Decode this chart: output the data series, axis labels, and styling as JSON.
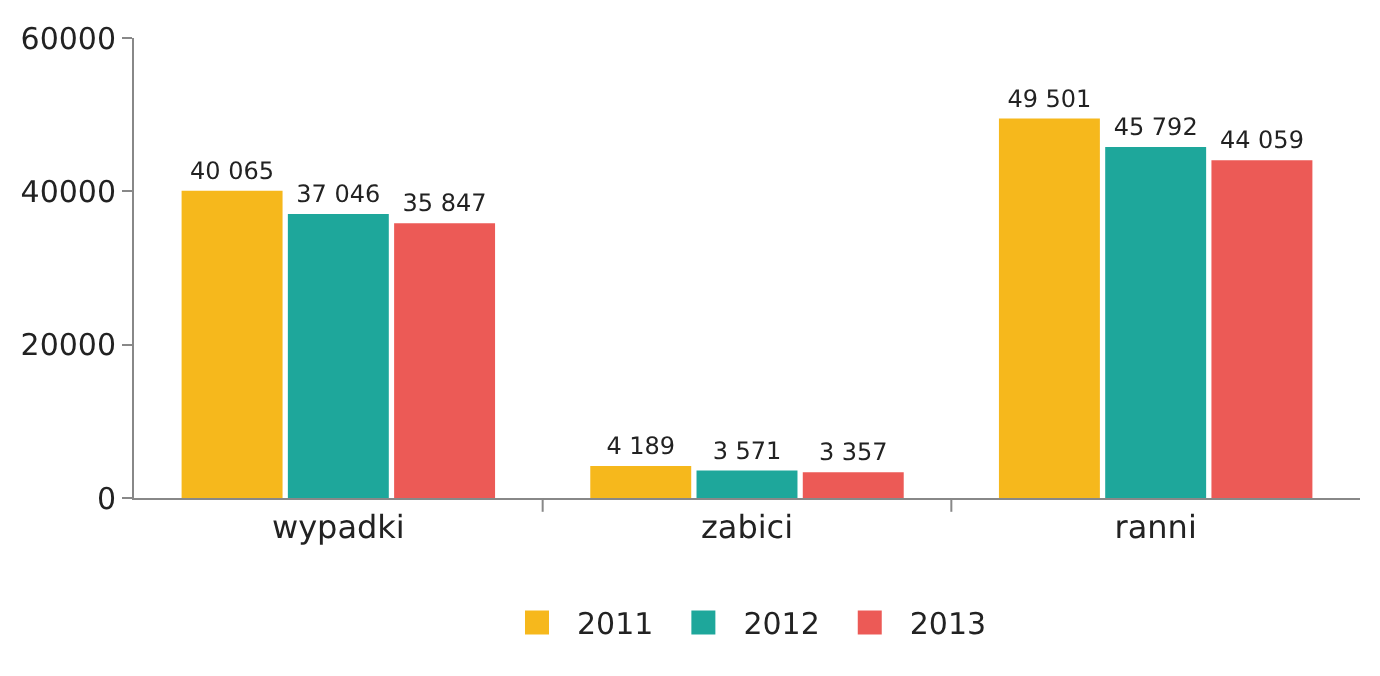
{
  "chart_data": {
    "type": "bar",
    "categories": [
      "wypadki",
      "zabici",
      "ranni"
    ],
    "series": [
      {
        "name": "2011",
        "color": "#f6b81c",
        "values": [
          40065,
          4189,
          49501
        ],
        "value_labels": [
          "40 065",
          "4 189",
          "49 501"
        ]
      },
      {
        "name": "2012",
        "color": "#1ea79b",
        "values": [
          37046,
          3571,
          45792
        ],
        "value_labels": [
          "37 046",
          "3 571",
          "45 792"
        ]
      },
      {
        "name": "2013",
        "color": "#ec5a56",
        "values": [
          35847,
          3357,
          44059
        ],
        "value_labels": [
          "35 847",
          "3 357",
          "44 059"
        ]
      }
    ],
    "ylim": [
      0,
      60000
    ],
    "yticks": [
      0,
      20000,
      40000,
      60000
    ],
    "legend": "bottom"
  }
}
